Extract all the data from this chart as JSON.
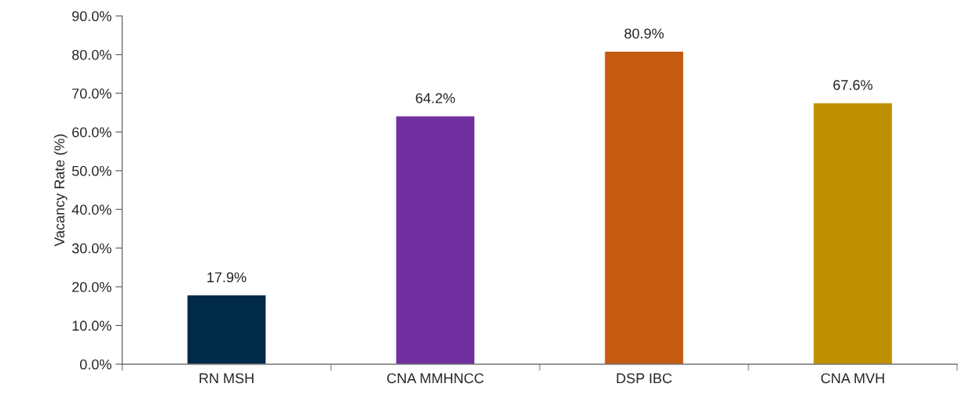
{
  "chart_data": {
    "type": "bar",
    "ylabel": "Vacancy Rate (%)",
    "categories": [
      "RN MSH",
      "CNA MMHNCC",
      "DSP IBC",
      "CNA MVH"
    ],
    "values": [
      17.9,
      64.2,
      80.9,
      67.6
    ],
    "colors": [
      "#022b49",
      "#7030a0",
      "#c55a11",
      "#bf9000"
    ],
    "value_labels": [
      "17.9%",
      "64.2%",
      "80.9%",
      "67.6%"
    ],
    "ylim": [
      0,
      90
    ],
    "yticks": [
      {
        "value": 0,
        "label": "0.0%"
      },
      {
        "value": 10,
        "label": "10.0%"
      },
      {
        "value": 20,
        "label": "20.0%"
      },
      {
        "value": 30,
        "label": "30.0%"
      },
      {
        "value": 40,
        "label": "40.0%"
      },
      {
        "value": 50,
        "label": "50.0%"
      },
      {
        "value": 60,
        "label": "60.0%"
      },
      {
        "value": 70,
        "label": "70.0%"
      },
      {
        "value": 80,
        "label": "80.0%"
      },
      {
        "value": 90,
        "label": "90.0%"
      }
    ],
    "grid": false,
    "legend": false
  }
}
